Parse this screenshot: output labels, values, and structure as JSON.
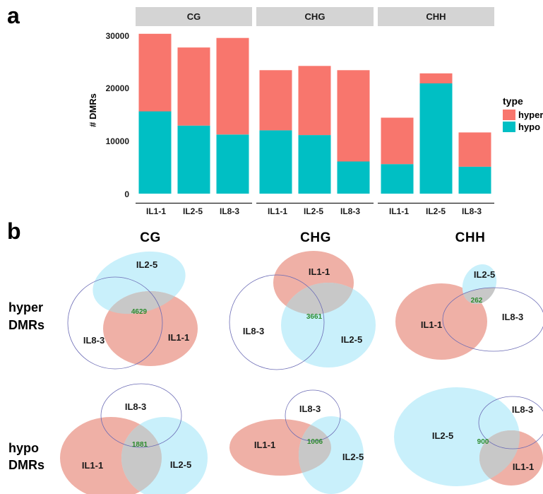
{
  "panel_a_label": "a",
  "panel_b_label": "b",
  "colors": {
    "hyper": "#F8766D",
    "hypo": "#00BFC4",
    "facet_bg": "#d4d4d4",
    "venn_red": "#EFB0A6",
    "venn_blue": "#C9F0FB",
    "venn_overlap": "#C8C8C8",
    "venn_outline": "#6B6BB5"
  },
  "chart_data": {
    "type": "bar",
    "stacked": true,
    "ylabel": "# DMRs",
    "ylim": [
      0,
      32000
    ],
    "yticks": [
      "0",
      "10000",
      "20000",
      "30000"
    ],
    "ytick_values": [
      0,
      10000,
      20000,
      30000
    ],
    "legend": {
      "title": "type",
      "entries": [
        "hyper",
        "hypo"
      ],
      "position": "right"
    },
    "facets": [
      {
        "title": "CG",
        "categories": [
          "IL1-1",
          "IL2-5",
          "IL8-3"
        ],
        "series": [
          {
            "name": "hypo",
            "values": [
              15600,
              12900,
              11200
            ]
          },
          {
            "name": "hyper",
            "values": [
              14700,
              14800,
              18300
            ]
          }
        ]
      },
      {
        "title": "CHG",
        "categories": [
          "IL1-1",
          "IL2-5",
          "IL8-3"
        ],
        "series": [
          {
            "name": "hypo",
            "values": [
              12000,
              11100,
              6100
            ]
          },
          {
            "name": "hyper",
            "values": [
              11400,
              13100,
              17300
            ]
          }
        ]
      },
      {
        "title": "CHH",
        "categories": [
          "IL1-1",
          "IL2-5",
          "IL8-3"
        ],
        "series": [
          {
            "name": "hypo",
            "values": [
              5600,
              20900,
              5100
            ]
          },
          {
            "name": "hyper",
            "values": [
              8800,
              1900,
              6500
            ]
          }
        ]
      }
    ]
  },
  "venn": {
    "columns": [
      "CG",
      "CHG",
      "CHH"
    ],
    "rows": [
      {
        "title_line1": "hyper",
        "title_line2": "DMRs",
        "diagrams": [
          {
            "labels": [
              "IL2-5",
              "IL8-3",
              "IL1-1"
            ],
            "count": "4629"
          },
          {
            "labels": [
              "IL1-1",
              "IL8-3",
              "IL2-5"
            ],
            "count": "3661"
          },
          {
            "labels": [
              "IL2-5",
              "IL1-1",
              "IL8-3"
            ],
            "count": "262"
          }
        ]
      },
      {
        "title_line1": "hypo",
        "title_line2": "DMRs",
        "diagrams": [
          {
            "labels": [
              "IL8-3",
              "IL1-1",
              "IL2-5"
            ],
            "count": "1881"
          },
          {
            "labels": [
              "IL8-3",
              "IL1-1",
              "IL2-5"
            ],
            "count": "1006"
          },
          {
            "labels": [
              "IL8-3",
              "IL2-5",
              "IL1-1"
            ],
            "count": "900"
          }
        ]
      }
    ]
  }
}
